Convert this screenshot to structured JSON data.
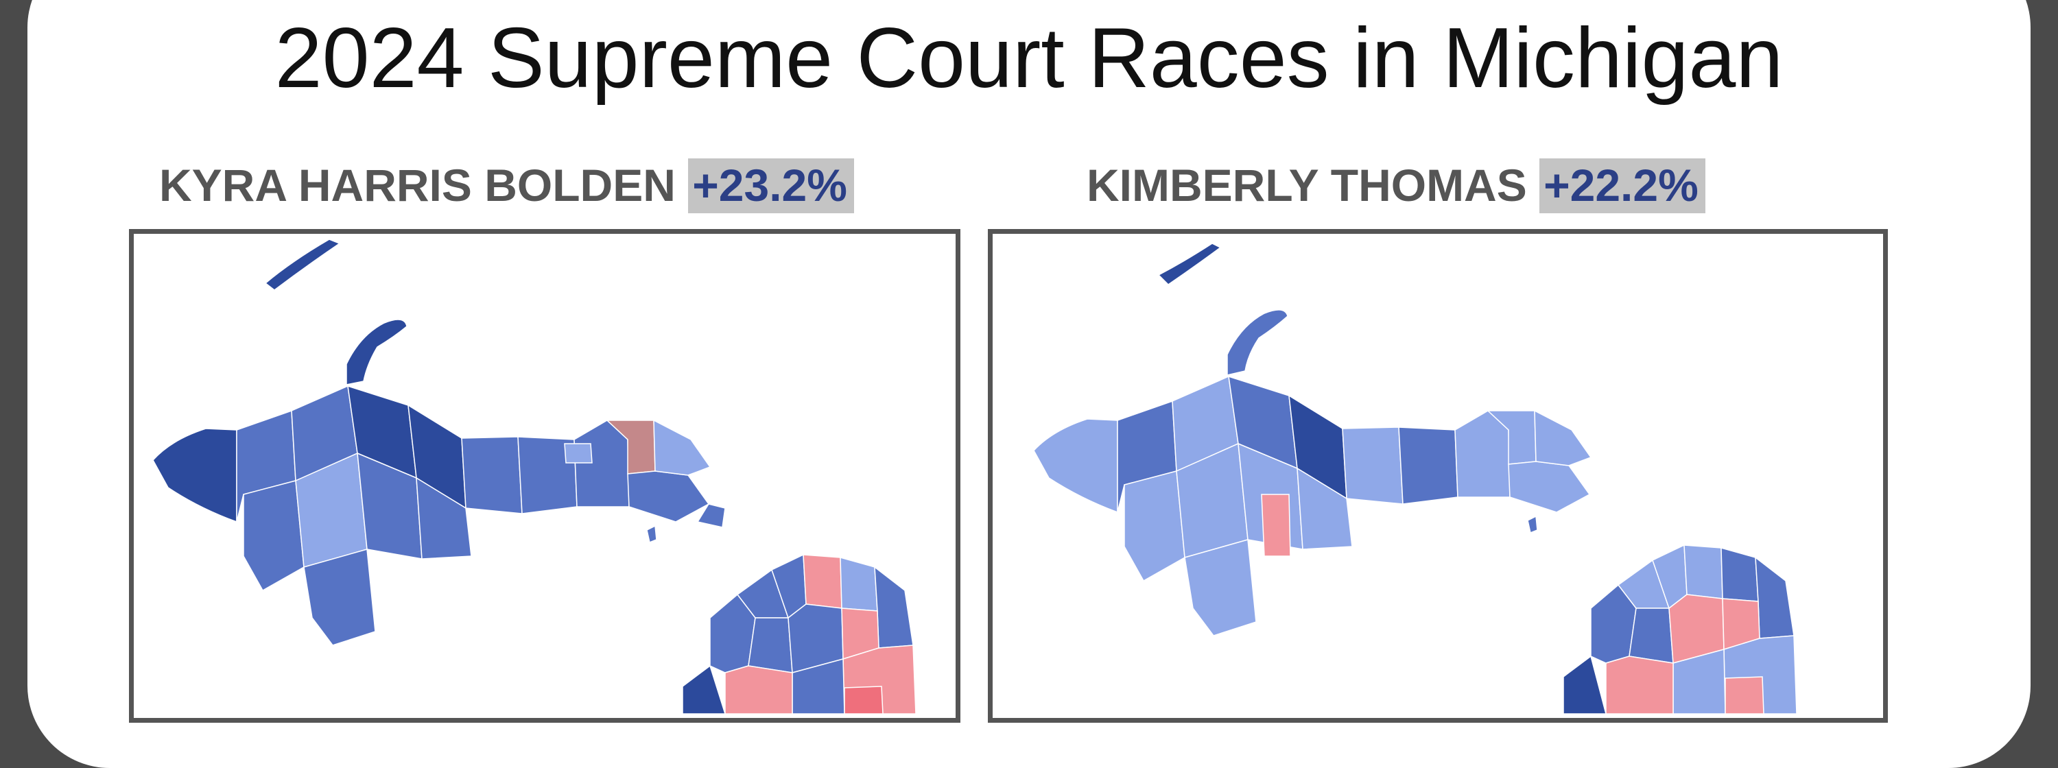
{
  "title": "2024 Supreme Court Races in Michigan",
  "colors": {
    "dem_strong": "#2c4a9c",
    "dem_mid": "#5673c4",
    "dem_light": "#8fa8e8",
    "rep_light": "#f2949c",
    "rep_mid": "#ef6f7c",
    "tossup": "#c4888a",
    "lake": "#2c4a9c"
  },
  "panels": [
    {
      "candidate": "KYRA HARRIS BOLDEN",
      "margin": "+23.2%"
    },
    {
      "candidate": "KIMBERLY THOMAS",
      "margin": "+22.2%"
    }
  ]
}
